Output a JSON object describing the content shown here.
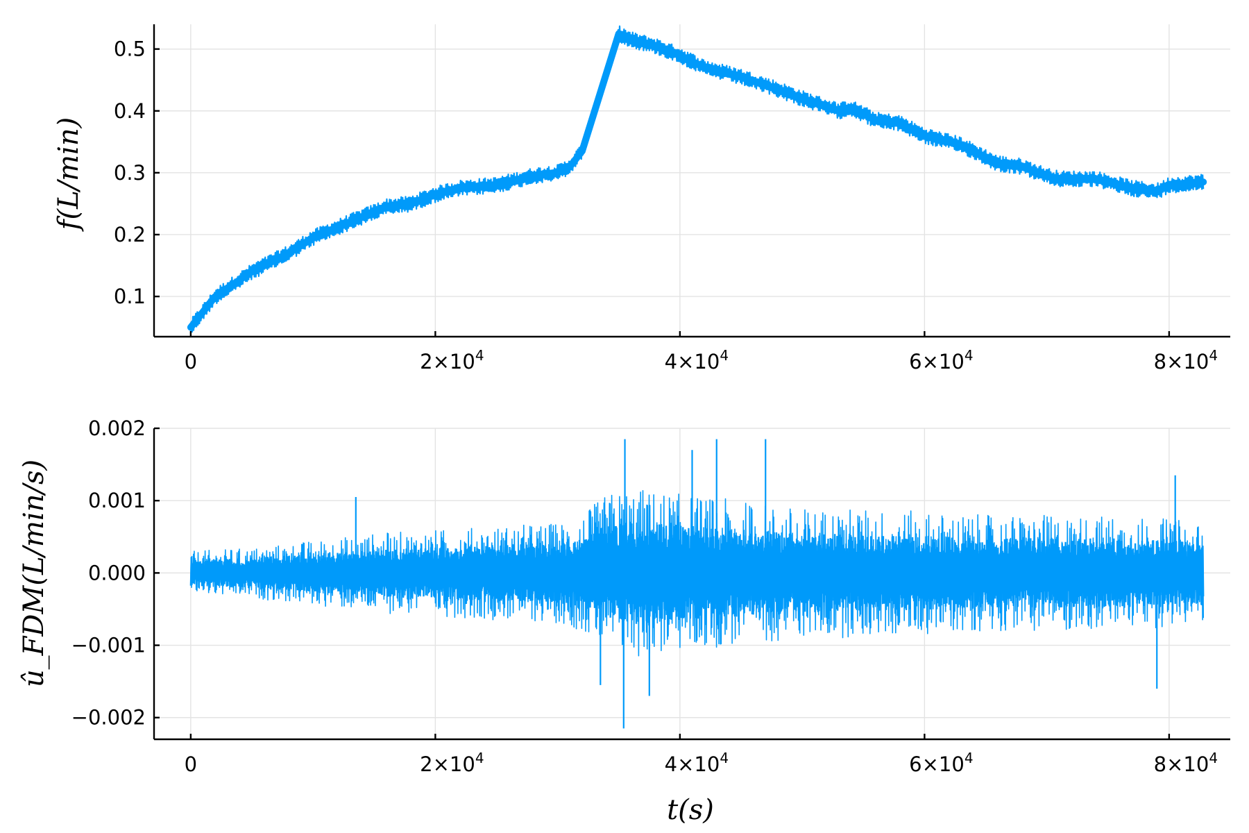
{
  "chart_data": [
    {
      "type": "line",
      "panel": "top",
      "title": "",
      "xlabel": "",
      "ylabel": "f(L/min)",
      "xlim": [
        -3000,
        85000
      ],
      "ylim": [
        0.035,
        0.54
      ],
      "grid": true,
      "legend": "none",
      "color": "#009AFA",
      "x_ticks": [
        {
          "value": 0,
          "base": "0",
          "exp": ""
        },
        {
          "value": 20000,
          "base": "2×10",
          "exp": "4"
        },
        {
          "value": 40000,
          "base": "4×10",
          "exp": "4"
        },
        {
          "value": 60000,
          "base": "6×10",
          "exp": "4"
        },
        {
          "value": 80000,
          "base": "8×10",
          "exp": "4"
        }
      ],
      "y_ticks": [
        {
          "value": 0.1,
          "label": "0.1"
        },
        {
          "value": 0.2,
          "label": "0.2"
        },
        {
          "value": 0.3,
          "label": "0.3"
        },
        {
          "value": 0.4,
          "label": "0.4"
        },
        {
          "value": 0.5,
          "label": "0.5"
        }
      ],
      "noise_band": 0.013,
      "series": [
        {
          "x": [
            0,
            2000,
            5000,
            8000,
            10000,
            13000,
            16000,
            18000,
            20000,
            22000,
            25000,
            28000,
            30000,
            31000,
            32000,
            35000,
            36000,
            38000,
            40000,
            42000,
            45000,
            48000,
            50000,
            53000,
            54000,
            56000,
            58000,
            60000,
            63000,
            66000,
            68000,
            70000,
            71000,
            74000,
            77000,
            79000,
            80000,
            82800
          ],
          "y": [
            0.05,
            0.1,
            0.14,
            0.17,
            0.195,
            0.22,
            0.245,
            0.25,
            0.265,
            0.275,
            0.28,
            0.295,
            0.3,
            0.31,
            0.335,
            0.525,
            0.515,
            0.505,
            0.49,
            0.47,
            0.455,
            0.435,
            0.42,
            0.4,
            0.405,
            0.385,
            0.38,
            0.36,
            0.345,
            0.315,
            0.31,
            0.295,
            0.29,
            0.29,
            0.275,
            0.27,
            0.28,
            0.285
          ]
        }
      ]
    },
    {
      "type": "line",
      "panel": "bottom",
      "title": "",
      "xlabel": "t(s)",
      "ylabel": "û_FDM(L/min/s)",
      "xlim": [
        -3000,
        85000
      ],
      "ylim": [
        -0.0023,
        0.002
      ],
      "grid": true,
      "legend": "none",
      "color": "#009AFA",
      "x_ticks": [
        {
          "value": 0,
          "base": "0",
          "exp": ""
        },
        {
          "value": 20000,
          "base": "2×10",
          "exp": "4"
        },
        {
          "value": 40000,
          "base": "4×10",
          "exp": "4"
        },
        {
          "value": 60000,
          "base": "6×10",
          "exp": "4"
        },
        {
          "value": 80000,
          "base": "8×10",
          "exp": "4"
        }
      ],
      "y_ticks": [
        {
          "value": -0.002,
          "label": "−0.002"
        },
        {
          "value": -0.001,
          "label": "−0.001"
        },
        {
          "value": 0.0,
          "label": "0.000"
        },
        {
          "value": 0.001,
          "label": "0.001"
        },
        {
          "value": 0.002,
          "label": "0.002"
        }
      ],
      "envelope": {
        "x": [
          0,
          5000,
          10000,
          15000,
          20000,
          25000,
          30000,
          32000,
          34000,
          36000,
          40000,
          45000,
          50000,
          55000,
          60000,
          65000,
          70000,
          75000,
          80000,
          82800
        ],
        "amplitude": [
          0.0003,
          0.00035,
          0.00045,
          0.00055,
          0.0006,
          0.00065,
          0.0007,
          0.0008,
          0.0011,
          0.0012,
          0.0011,
          0.001,
          0.0009,
          0.0009,
          0.00085,
          0.0008,
          0.0008,
          0.0008,
          0.00075,
          0.0007
        ]
      },
      "spikes": [
        {
          "x": 13500,
          "y": 0.00105
        },
        {
          "x": 35500,
          "y": 0.00185
        },
        {
          "x": 41000,
          "y": 0.0017
        },
        {
          "x": 43000,
          "y": 0.00185
        },
        {
          "x": 47000,
          "y": 0.00185
        },
        {
          "x": 33500,
          "y": -0.00155
        },
        {
          "x": 35400,
          "y": -0.00215
        },
        {
          "x": 37500,
          "y": -0.0017
        },
        {
          "x": 79000,
          "y": -0.0016
        },
        {
          "x": 80500,
          "y": 0.00135
        }
      ]
    }
  ]
}
